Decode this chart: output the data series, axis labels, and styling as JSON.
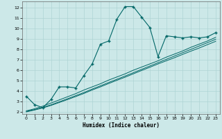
{
  "xlabel": "Humidex (Indice chaleur)",
  "bg_color": "#cce8e8",
  "line_color": "#006666",
  "grid_color": "#aed4d4",
  "xlim": [
    -0.5,
    23.5
  ],
  "ylim": [
    1.8,
    12.6
  ],
  "xticks": [
    0,
    1,
    2,
    3,
    4,
    5,
    6,
    7,
    8,
    9,
    10,
    11,
    12,
    13,
    14,
    15,
    16,
    17,
    18,
    19,
    20,
    21,
    22,
    23
  ],
  "yticks": [
    2,
    3,
    4,
    5,
    6,
    7,
    8,
    9,
    10,
    11,
    12
  ],
  "main_x": [
    0,
    1,
    2,
    3,
    4,
    5,
    6,
    7,
    8,
    9,
    10,
    11,
    12,
    13,
    14,
    15,
    16,
    17,
    18,
    19,
    20,
    21,
    22,
    23
  ],
  "main_y": [
    3.5,
    2.7,
    2.4,
    3.2,
    4.4,
    4.4,
    4.3,
    5.5,
    6.6,
    8.5,
    8.8,
    10.9,
    12.1,
    12.1,
    11.1,
    10.1,
    7.3,
    9.3,
    9.2,
    9.1,
    9.2,
    9.1,
    9.2,
    9.6
  ],
  "line2_x": [
    0,
    1,
    2,
    3,
    4,
    5,
    6,
    7,
    8,
    9,
    10,
    11,
    12,
    13,
    14,
    15,
    16,
    17,
    18,
    19,
    20,
    21,
    22,
    23
  ],
  "line2_y": [
    2.1,
    2.3,
    2.55,
    2.85,
    3.15,
    3.45,
    3.75,
    4.1,
    4.4,
    4.7,
    5.05,
    5.35,
    5.65,
    6.0,
    6.3,
    6.6,
    6.9,
    7.25,
    7.55,
    7.85,
    8.2,
    8.5,
    8.8,
    9.15
  ],
  "line3_x": [
    0,
    1,
    2,
    3,
    4,
    5,
    6,
    7,
    8,
    9,
    10,
    11,
    12,
    13,
    14,
    15,
    16,
    17,
    18,
    19,
    20,
    21,
    22,
    23
  ],
  "line3_y": [
    2.0,
    2.18,
    2.38,
    2.62,
    2.9,
    3.18,
    3.47,
    3.77,
    4.1,
    4.4,
    4.72,
    5.03,
    5.33,
    5.65,
    5.97,
    6.28,
    6.6,
    6.9,
    7.2,
    7.52,
    7.83,
    8.13,
    8.45,
    8.77
  ],
  "line4_x": [
    0,
    1,
    2,
    3,
    4,
    5,
    6,
    7,
    8,
    9,
    10,
    11,
    12,
    13,
    14,
    15,
    16,
    17,
    18,
    19,
    20,
    21,
    22,
    23
  ],
  "line4_y": [
    2.05,
    2.22,
    2.43,
    2.68,
    2.97,
    3.26,
    3.56,
    3.86,
    4.19,
    4.5,
    4.82,
    5.13,
    5.44,
    5.76,
    6.08,
    6.4,
    6.72,
    7.04,
    7.36,
    7.68,
    8.0,
    8.32,
    8.64,
    8.96
  ]
}
